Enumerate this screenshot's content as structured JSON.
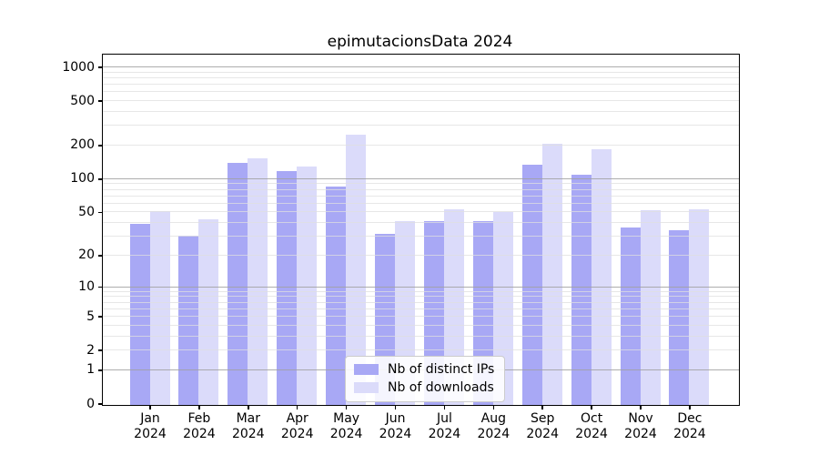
{
  "chart_data": {
    "type": "bar",
    "title": "epimutacionsData 2024",
    "y_scale": "log1p",
    "grid": true,
    "legend_position": "lower center",
    "categories": [
      "Jan",
      "Feb",
      "Mar",
      "Apr",
      "May",
      "Jun",
      "Jul",
      "Aug",
      "Sep",
      "Oct",
      "Nov",
      "Dec"
    ],
    "x_tick_year": "2024",
    "series": [
      {
        "name": "Nb of distinct IPs",
        "color": "#a8a8f5",
        "values": [
          40,
          31,
          142,
          119,
          87,
          32,
          42,
          42,
          135,
          110,
          37,
          35
        ]
      },
      {
        "name": "Nb of downloads",
        "color": "#dbdbfa",
        "values": [
          52,
          44,
          156,
          131,
          254,
          42,
          54,
          51,
          210,
          188,
          53,
          54
        ]
      }
    ],
    "yticks": [
      0,
      1,
      2,
      5,
      10,
      20,
      50,
      100,
      200,
      500,
      1000
    ],
    "gridlines": {
      "major": [
        1,
        10,
        100,
        1000
      ],
      "minor": [
        2,
        3,
        4,
        5,
        6,
        7,
        8,
        9,
        20,
        30,
        40,
        50,
        60,
        70,
        80,
        90,
        200,
        300,
        400,
        500,
        600,
        700,
        800,
        900
      ]
    },
    "ylim": [
      0,
      1300
    ]
  },
  "colors": {
    "background": "#ffffff",
    "axis": "#000000",
    "grid_major": "#a0a0a0",
    "grid_minor": "#dfdfdf",
    "bar_distinct_ips": "#a8a8f5",
    "bar_downloads": "#dbdbfa"
  }
}
